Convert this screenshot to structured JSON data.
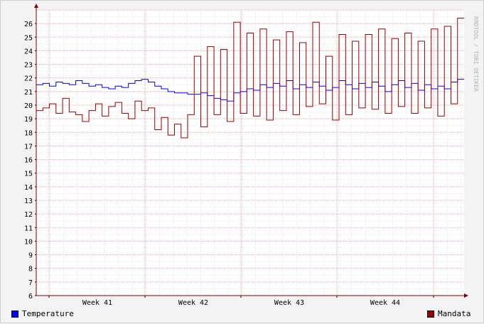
{
  "watermark": "RRDTOOL / TOBI OETIKER",
  "chart_data": {
    "type": "line",
    "ylim": [
      6,
      27
    ],
    "y_ticks": [
      6,
      7,
      8,
      9,
      10,
      11,
      12,
      13,
      14,
      15,
      16,
      17,
      18,
      19,
      20,
      21,
      22,
      23,
      24,
      25,
      26
    ],
    "x_ticks": [
      "Week 41",
      "Week 42",
      "Week 43",
      "Week 44"
    ],
    "grid": true,
    "legend_placement": "bottom",
    "series": [
      {
        "name": "Temperature",
        "color": "#0000ff",
        "values": [
          21.5,
          21.6,
          21.4,
          21.7,
          21.6,
          21.5,
          21.8,
          21.6,
          21.4,
          21.5,
          21.3,
          21.2,
          21.4,
          21.3,
          21.6,
          21.8,
          21.9,
          21.7,
          21.4,
          21.2,
          21.0,
          20.9,
          20.9,
          20.8,
          20.8,
          20.9,
          20.7,
          20.5,
          20.4,
          20.3,
          20.9,
          21.0,
          21.2,
          21.1,
          21.5,
          21.3,
          21.6,
          21.4,
          21.8,
          21.2,
          21.5,
          21.3,
          21.7,
          21.4,
          21.1,
          21.3,
          21.8,
          21.5,
          21.2,
          21.6,
          21.3,
          21.7,
          21.4,
          21.0,
          21.5,
          21.8,
          21.3,
          21.6,
          21.1,
          21.5,
          21.2,
          21.4,
          21.2,
          21.7,
          21.9
        ]
      },
      {
        "name": "Mandata",
        "color": "#990000",
        "values": [
          19.6,
          19.8,
          20.1,
          19.4,
          20.5,
          19.5,
          19.3,
          18.8,
          19.6,
          20.1,
          19.2,
          19.9,
          20.2,
          19.4,
          19.0,
          20.3,
          19.6,
          19.8,
          18.2,
          19.1,
          17.8,
          18.6,
          17.6,
          19.3,
          23.6,
          18.4,
          24.3,
          19.3,
          24.1,
          18.8,
          26.1,
          19.4,
          25.3,
          19.2,
          25.6,
          18.9,
          24.8,
          19.6,
          25.4,
          19.3,
          24.6,
          19.9,
          26.1,
          20.1,
          23.6,
          18.9,
          25.2,
          19.3,
          24.7,
          19.8,
          25.2,
          19.7,
          25.6,
          19.4,
          24.9,
          19.9,
          25.3,
          19.4,
          24.7,
          19.8,
          25.6,
          19.2,
          25.8,
          20.1,
          26.4
        ]
      }
    ]
  },
  "legend": {
    "temperature": {
      "label": "Temperature",
      "color": "#0000ff"
    },
    "mandata": {
      "label": "Mandata",
      "color": "#990000"
    }
  }
}
